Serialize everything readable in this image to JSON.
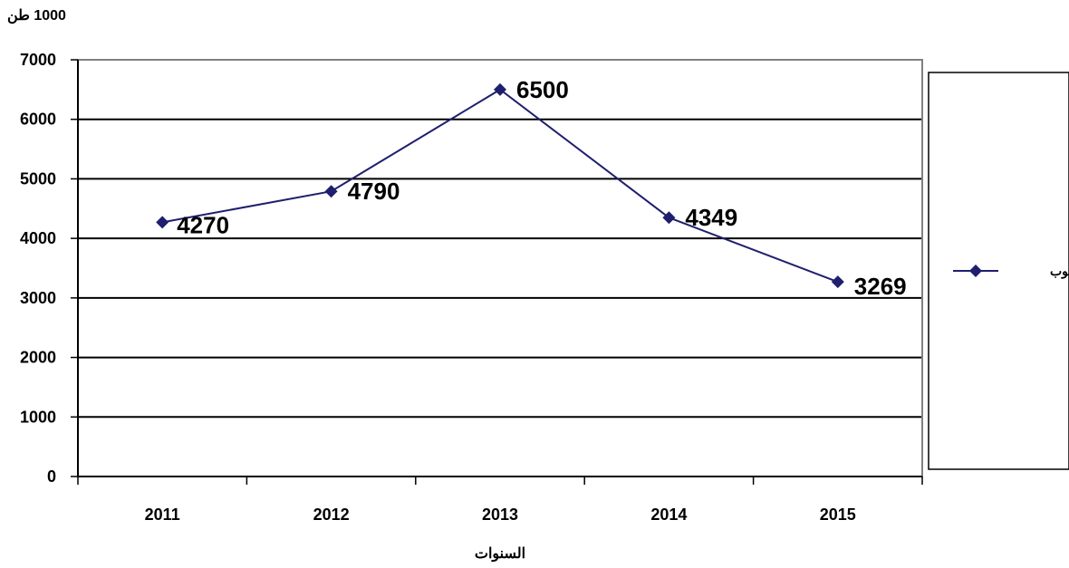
{
  "chart_data": {
    "type": "line",
    "categories": [
      "2011",
      "2012",
      "2013",
      "2014",
      "2015"
    ],
    "series": [
      {
        "name": "الحبوب",
        "values": [
          4270,
          4790,
          6500,
          4349,
          3269
        ]
      }
    ],
    "data_labels": [
      "4270",
      "4790",
      "6500",
      "4349",
      "3269"
    ],
    "xlabel": "السنوات",
    "ylabel": "1000 طن",
    "ylim": [
      0,
      7000
    ],
    "yticks": [
      0,
      1000,
      2000,
      3000,
      4000,
      5000,
      6000,
      7000
    ],
    "grid": true,
    "legend": "right",
    "colors": {
      "series": "#1f1f6e",
      "grid": "#000000",
      "frame": "#808080"
    }
  }
}
